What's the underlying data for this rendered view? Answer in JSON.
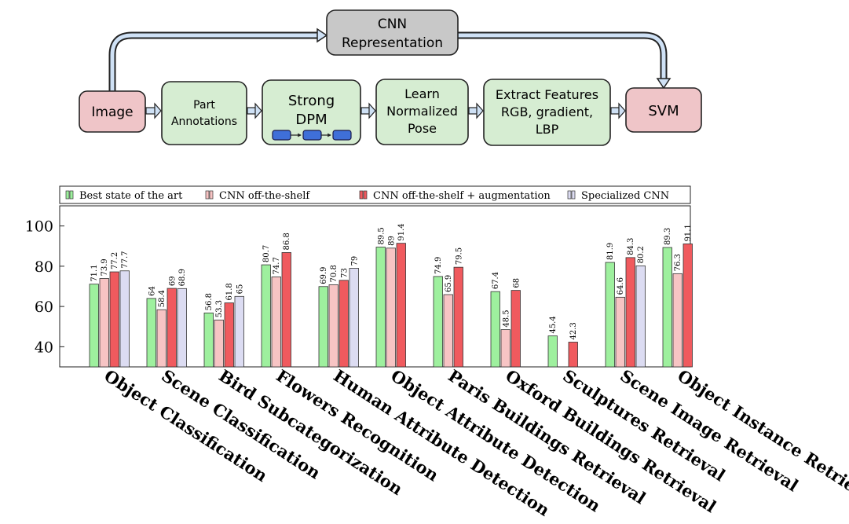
{
  "diagram": {
    "nodes": {
      "cnn": [
        "CNN",
        "Representation"
      ],
      "image": [
        "Image"
      ],
      "part": [
        "Part",
        "Annotations"
      ],
      "dpm": [
        "Strong",
        "DPM"
      ],
      "pose": [
        "Learn",
        "Normalized",
        "Pose"
      ],
      "features": [
        "Extract Features",
        "RGB, gradient,",
        "LBP"
      ],
      "svm": [
        "SVM"
      ]
    },
    "colors": {
      "cnn": "#c8c8c8",
      "pink": "#efc5c8",
      "green": "#d6edd2",
      "part_blue": "#3f6fd8"
    }
  },
  "chart_data": {
    "type": "bar",
    "categories": [
      "Object Classification",
      "Scene Classification",
      "Bird Subcategorization",
      "Flowers Recognition",
      "Human Attribute Detection",
      "Object Attribute Detection",
      "Paris Buildings Retrieval",
      "Oxford Buildings Retrieval",
      "Sculptures Retrieval",
      "Scene Image Retrieval",
      "Object Instance Retrieval"
    ],
    "series": [
      {
        "name": "Best state of the art",
        "color": "#9ef09e",
        "values": [
          71.1,
          64,
          56.8,
          80.7,
          69.9,
          89.5,
          74.9,
          67.4,
          45.4,
          81.9,
          89.3
        ]
      },
      {
        "name": "CNN off-the-shelf",
        "color": "#f7c4c4",
        "values": [
          73.9,
          58.4,
          53.3,
          74.7,
          70.8,
          89,
          65.9,
          48.5,
          null,
          64.6,
          76.3
        ]
      },
      {
        "name": "CNN off-the-shelf + augmentation",
        "color": "#f05a5e",
        "values": [
          77.2,
          69,
          61.8,
          86.8,
          73,
          91.4,
          79.5,
          68,
          42.3,
          84.3,
          91.1
        ]
      },
      {
        "name": "Specialized CNN",
        "color": "#dcdcf2",
        "values": [
          77.7,
          68.9,
          65,
          null,
          79,
          null,
          null,
          null,
          null,
          80.2,
          null
        ]
      }
    ],
    "value_labels": [
      [
        "71.1",
        "64",
        "56.8",
        "80.7",
        "69.9",
        "89.5",
        "74.9",
        "67.4",
        "45.4",
        "81.9",
        "89.3"
      ],
      [
        "73.9",
        "58.4",
        "53.3",
        "74.7",
        "70.8",
        "89",
        "65.9",
        "48.5",
        "",
        "64.6",
        "76.3"
      ],
      [
        "77.2",
        "69",
        "61.8",
        "86.8",
        "73",
        "91.4",
        "79.5",
        "68",
        "42.3",
        "84.3",
        "91.1"
      ],
      [
        "77.7",
        "68.9",
        "65",
        "",
        "79",
        "",
        "",
        "",
        "",
        "80.2",
        ""
      ]
    ],
    "yticks": [
      "40",
      "60",
      "80",
      "100"
    ],
    "ylim": [
      30,
      110
    ],
    "legend_position": "top",
    "grid": false
  }
}
